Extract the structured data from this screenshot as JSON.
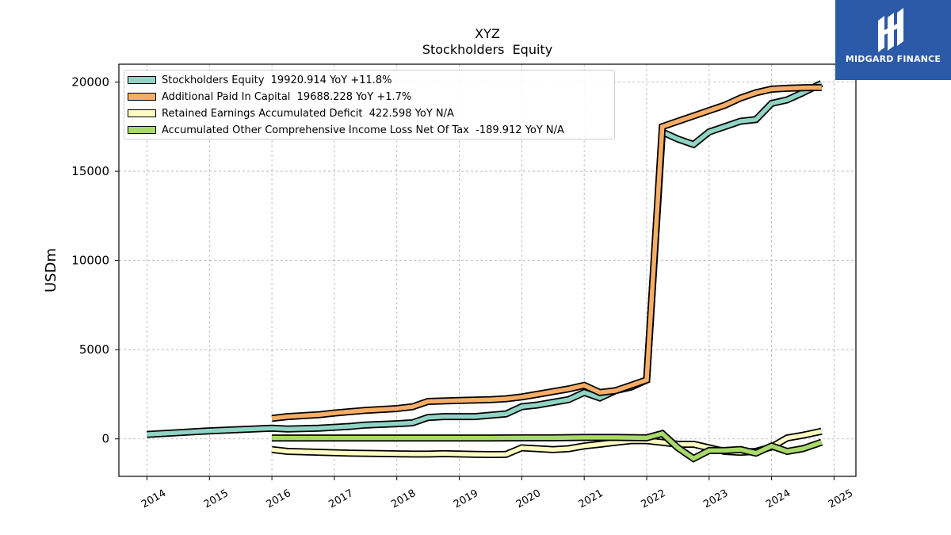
{
  "chart_data": {
    "type": "line",
    "title": "XYZ",
    "subtitle": "Stockholders  Equity",
    "xlabel": "",
    "ylabel": "USDm",
    "xlim": [
      2013.55,
      2025.35
    ],
    "ylim": [
      -2100,
      21000
    ],
    "x_ticks": [
      "2014",
      "2015",
      "2016",
      "2017",
      "2018",
      "2019",
      "2020",
      "2021",
      "2022",
      "2023",
      "2024",
      "2025"
    ],
    "y_ticks": [
      0,
      5000,
      10000,
      15000,
      20000
    ],
    "grid": true,
    "legend_position": "top-left",
    "series": [
      {
        "name": "Stockholders Equity  19920.914 YoY +11.8%",
        "color": "#8fd4c4",
        "x": [
          2014.0,
          2015.0,
          2016.0,
          2016.25,
          2016.75,
          2017.25,
          2017.5,
          2018.0,
          2018.25,
          2018.5,
          2018.75,
          2019.25,
          2019.75,
          2020.0,
          2020.25,
          2020.5,
          2020.75,
          2021.0,
          2021.25,
          2021.5,
          2021.75,
          2022.0,
          2022.25,
          2022.5,
          2022.75,
          2023.0,
          2023.25,
          2023.5,
          2023.75,
          2024.0,
          2024.25,
          2024.5,
          2024.8
        ],
        "values": [
          250,
          450,
          600,
          550,
          600,
          700,
          780,
          850,
          900,
          1200,
          1250,
          1250,
          1400,
          1800,
          1900,
          2050,
          2200,
          2600,
          2300,
          2700,
          2900,
          3300,
          17200,
          16800,
          16500,
          17200,
          17500,
          17800,
          17900,
          18800,
          19000,
          19400,
          19920
        ]
      },
      {
        "name": "Additional Paid In Capital  19688.228 YoY +1.7%",
        "color": "#f7ad65",
        "x": [
          2016.0,
          2016.25,
          2016.75,
          2017.0,
          2017.5,
          2018.0,
          2018.25,
          2018.5,
          2019.0,
          2019.5,
          2019.75,
          2020.0,
          2020.25,
          2020.5,
          2020.75,
          2021.0,
          2021.25,
          2021.5,
          2021.75,
          2022.0,
          2022.25,
          2022.5,
          2022.75,
          2023.0,
          2023.25,
          2023.5,
          2023.75,
          2024.0,
          2024.25,
          2024.5,
          2024.8
        ],
        "values": [
          1150,
          1250,
          1350,
          1450,
          1600,
          1700,
          1800,
          2100,
          2150,
          2200,
          2250,
          2350,
          2500,
          2650,
          2800,
          3000,
          2600,
          2700,
          3000,
          3300,
          17500,
          17800,
          18100,
          18400,
          18700,
          19100,
          19400,
          19600,
          19650,
          19680,
          19688
        ]
      },
      {
        "name": "Retained Earnings Accumulated Deficit  422.598 YoY N/A",
        "color": "#fdfcc0",
        "x": [
          2016.0,
          2016.25,
          2016.75,
          2017.25,
          2017.75,
          2018.25,
          2018.5,
          2018.75,
          2019.25,
          2019.5,
          2019.75,
          2020.0,
          2020.25,
          2020.5,
          2020.75,
          2021.0,
          2021.25,
          2021.5,
          2021.75,
          2022.0,
          2022.25,
          2022.5,
          2022.75,
          2023.0,
          2023.25,
          2023.5,
          2023.75,
          2024.0,
          2024.25,
          2024.5,
          2024.8
        ],
        "values": [
          -600,
          -700,
          -750,
          -800,
          -820,
          -850,
          -850,
          -830,
          -870,
          -880,
          -870,
          -500,
          -550,
          -600,
          -550,
          -400,
          -300,
          -200,
          -100,
          -100,
          -200,
          -300,
          -300,
          -500,
          -700,
          -750,
          -700,
          -450,
          50,
          200,
          423
        ]
      },
      {
        "name": "Accumulated Other Comprehensive Income Loss Net Of Tax  -189.912 YoY N/A",
        "color": "#a8d96a",
        "x": [
          2016.0,
          2016.5,
          2017.0,
          2017.5,
          2018.0,
          2018.5,
          2019.0,
          2019.5,
          2020.0,
          2020.5,
          2021.0,
          2021.5,
          2022.0,
          2022.25,
          2022.5,
          2022.75,
          2023.0,
          2023.25,
          2023.5,
          2023.75,
          2024.0,
          2024.25,
          2024.5,
          2024.8
        ],
        "values": [
          50,
          50,
          50,
          50,
          50,
          50,
          50,
          50,
          60,
          60,
          80,
          80,
          60,
          300,
          -500,
          -1100,
          -650,
          -650,
          -600,
          -800,
          -400,
          -700,
          -550,
          -190
        ]
      }
    ]
  },
  "logo": {
    "text": "MIDGARD FINANCE",
    "color": "#2a5aa8"
  }
}
